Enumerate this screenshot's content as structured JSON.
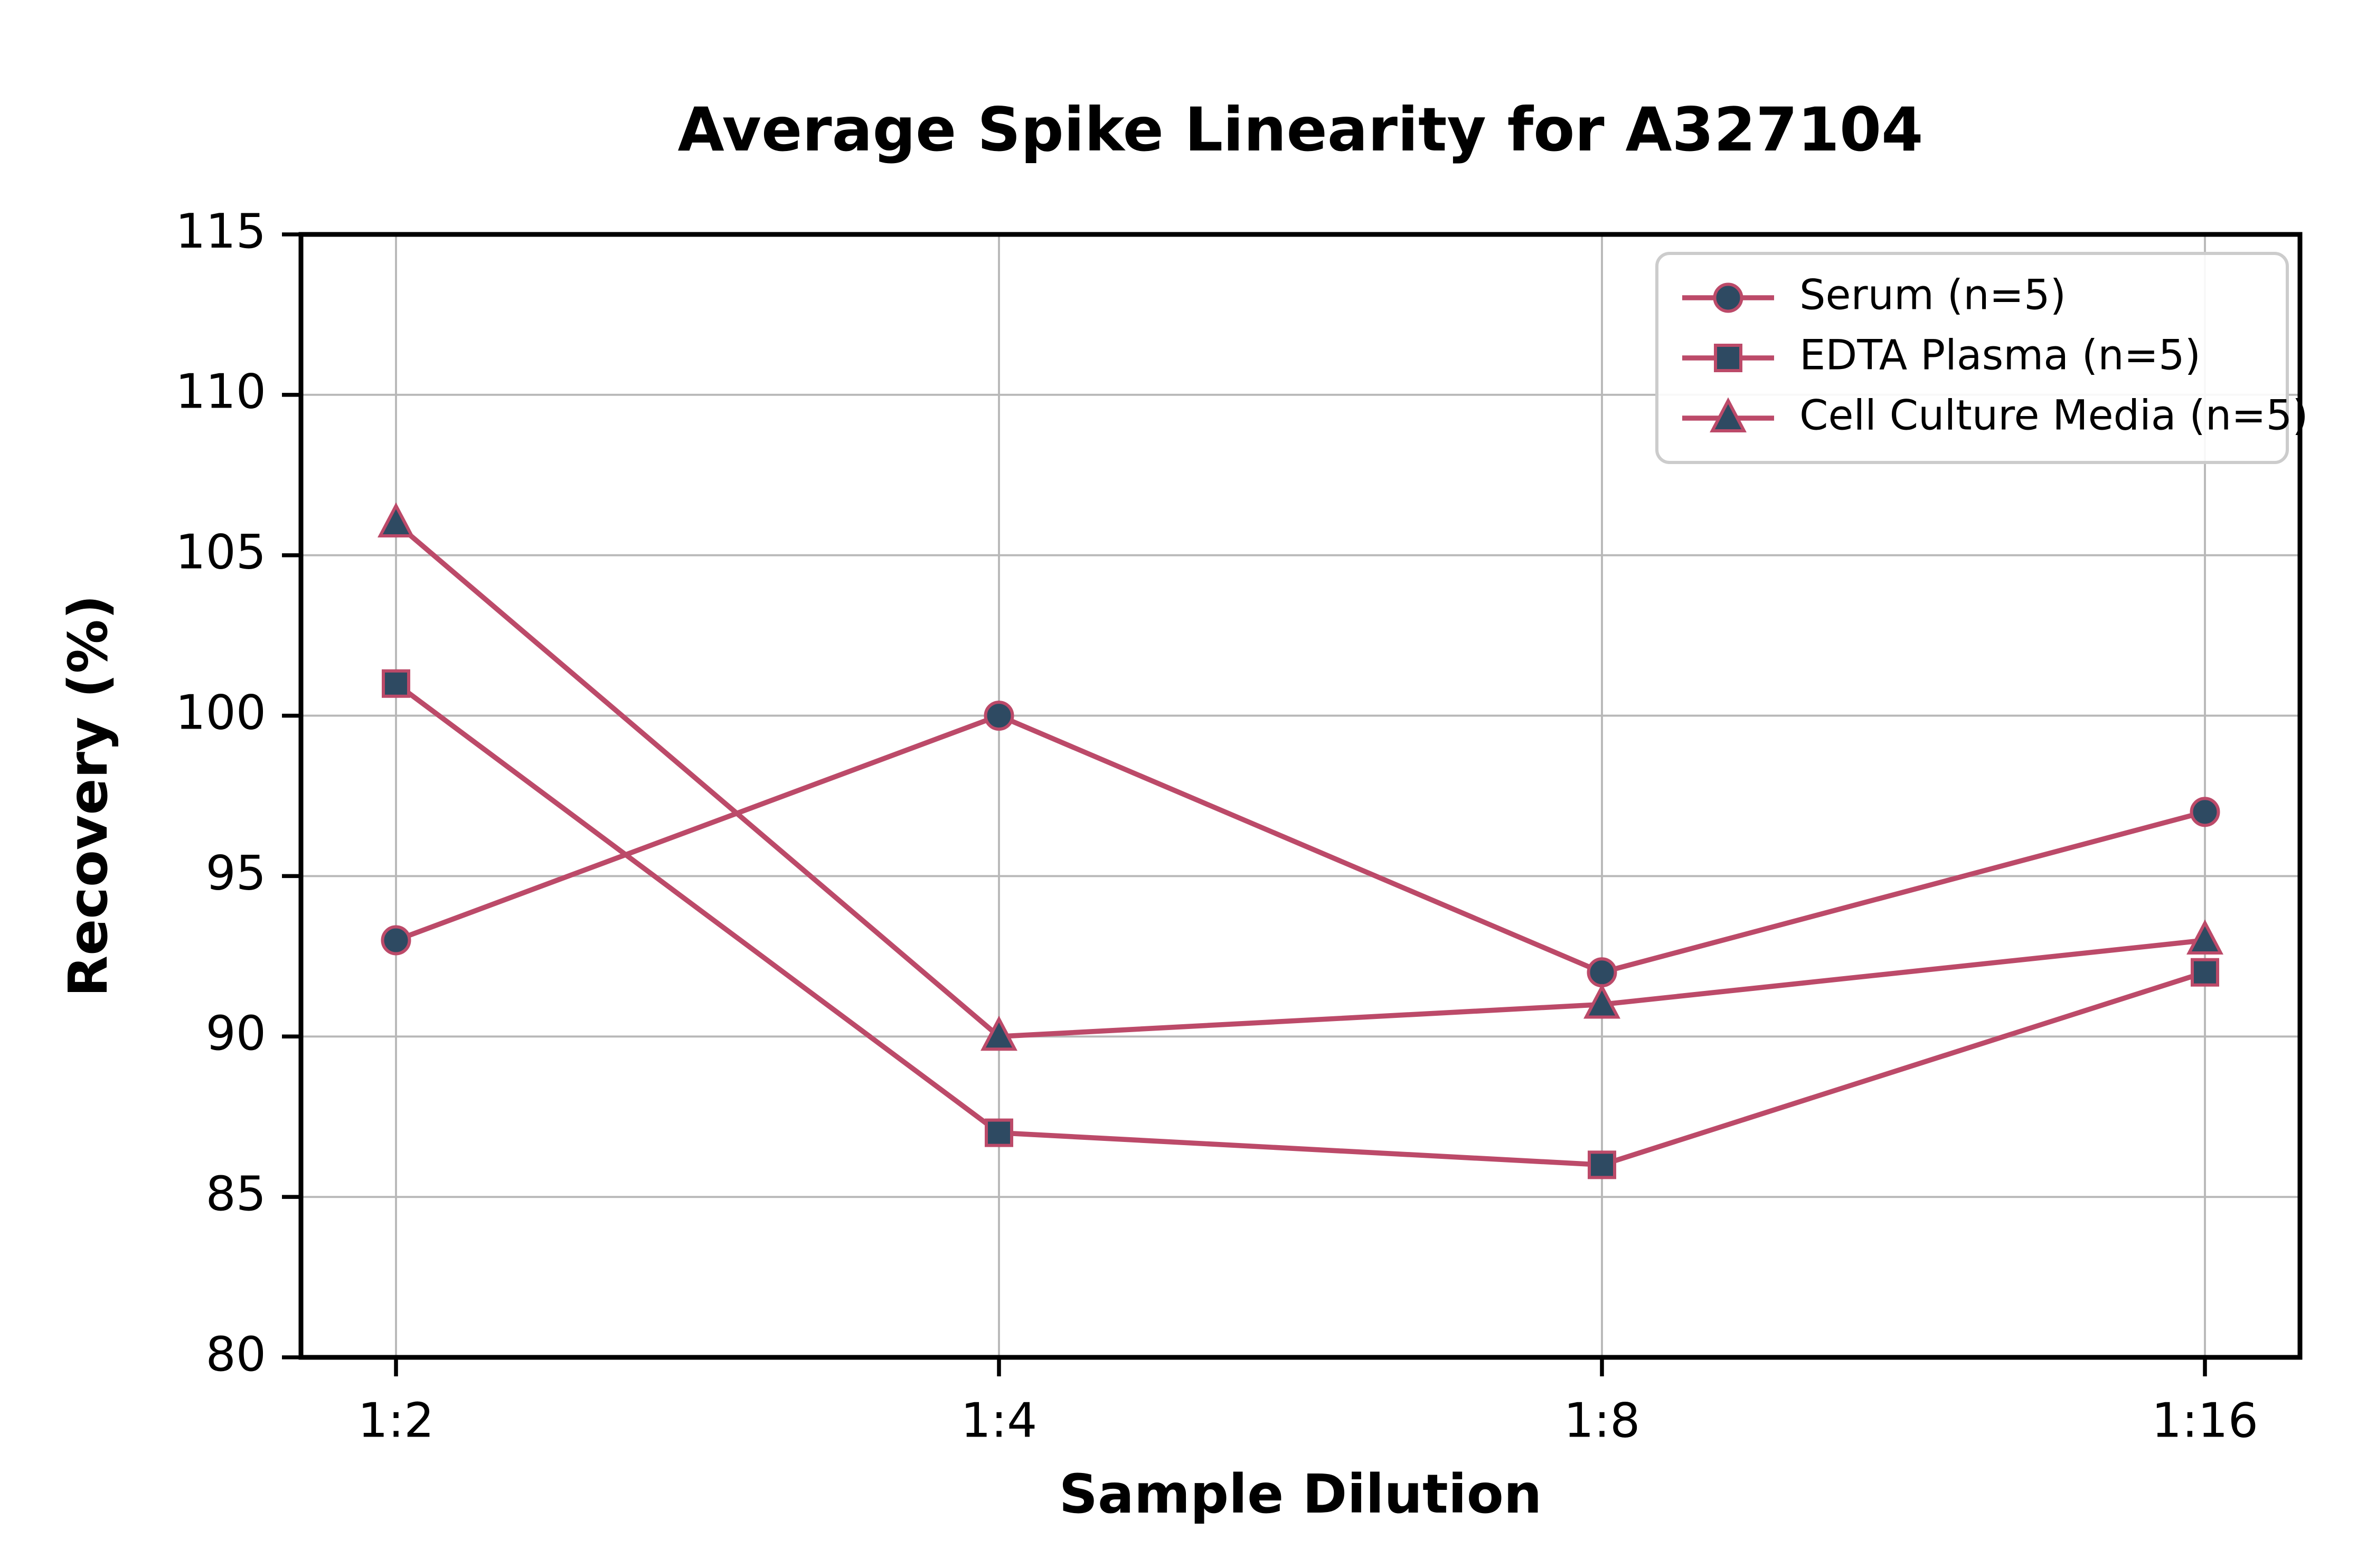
{
  "chart_data": {
    "type": "line",
    "title": "Average Spike Linearity for A327104",
    "xlabel": "Sample Dilution",
    "ylabel": "Recovery (%)",
    "categories": [
      "1:2",
      "1:4",
      "1:8",
      "1:16"
    ],
    "series": [
      {
        "name": "Serum (n=5)",
        "marker": "circle",
        "values": [
          93,
          100,
          92,
          97
        ]
      },
      {
        "name": "EDTA Plasma (n=5)",
        "marker": "square",
        "values": [
          101,
          87,
          86,
          92
        ]
      },
      {
        "name": "Cell Culture Media (n=5)",
        "marker": "triangle",
        "values": [
          106,
          90,
          91,
          93
        ]
      }
    ],
    "ylim": [
      80,
      115
    ],
    "yticks": [
      80,
      85,
      90,
      95,
      100,
      105,
      110,
      115
    ],
    "grid": true,
    "legend_position": "upper right",
    "colors": {
      "line": "#bc4a69",
      "marker_fill": "#2e4a62",
      "grid": "#b8b8b8",
      "axis": "#000000",
      "text": "#000000",
      "legend_border": "#cccccc",
      "background": "#ffffff"
    }
  }
}
